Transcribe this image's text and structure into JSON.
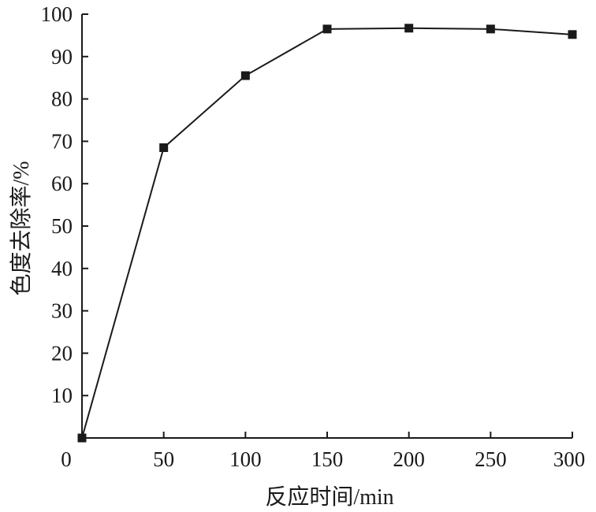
{
  "chart_data": {
    "type": "line",
    "xlabel": "反应时间/min",
    "ylabel": "色度去除率/%",
    "xlim": [
      0,
      300
    ],
    "ylim": [
      0,
      100
    ],
    "xticks": [
      0,
      50,
      100,
      150,
      200,
      250,
      300
    ],
    "yticks": [
      10,
      20,
      30,
      40,
      50,
      60,
      70,
      80,
      90,
      100
    ],
    "series": [
      {
        "x": [
          0,
          50,
          100,
          150,
          200,
          250,
          300
        ],
        "y": [
          0,
          68.5,
          85.5,
          96.5,
          96.7,
          96.5,
          95.2
        ],
        "color": "#1a1a1a",
        "marker": "square"
      }
    ],
    "grid": false,
    "legend": "none"
  }
}
